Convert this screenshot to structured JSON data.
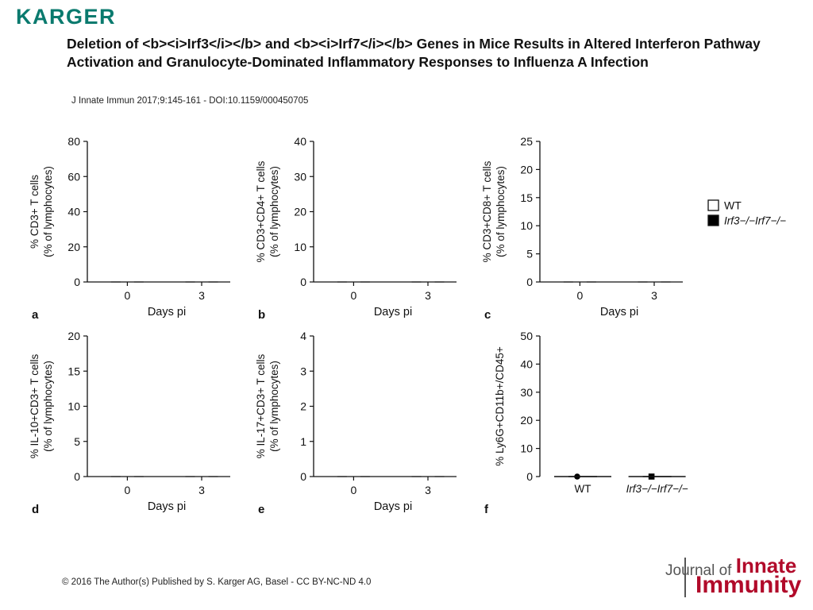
{
  "publisher": "KARGER",
  "title": "Deletion of <b><i>Irf3</i></b> and <b><i>Irf7</i></b> Genes in Mice Results in Altered Interferon Pathway Activation and Granulocyte-Dominated Inflammatory Responses to Influenza A Infection",
  "citation": "J Innate Immun 2017;9:145-161 -  DOI:10.1159/000450705",
  "footer": "© 2016 The Author(s) Published by S. Karger AG, Basel - CC BY-NC-ND 4.0",
  "journal": {
    "line1": "Journal of",
    "line1_big": "Innate",
    "line2": "Immunity"
  },
  "legend": {
    "wt": "WT",
    "ko": "Irf3−/−Irf7−/−"
  },
  "colors": {
    "wt": "#ffffff",
    "ko": "#000000",
    "stroke": "#111111",
    "brand": "#0a7a6e",
    "journal": "#b10a2a"
  },
  "chart_data": [
    {
      "panel": "a",
      "type": "bar",
      "ylabel": [
        "% CD3+ T cells",
        "(% of lymphocytes)"
      ],
      "xlabel": "Days pi",
      "categories": [
        "0",
        "3"
      ],
      "ylim": [
        0,
        80
      ],
      "yticks": [
        0,
        20,
        40,
        60,
        80
      ],
      "series": [
        {
          "name": "WT",
          "values": [
            0,
            0
          ],
          "errors": [
            0,
            0
          ]
        },
        {
          "name": "Irf3−/−Irf7−/−",
          "values": [
            0,
            0
          ],
          "errors": [
            0,
            0
          ]
        }
      ]
    },
    {
      "panel": "b",
      "type": "bar",
      "ylabel": [
        "% CD3+CD4+ T cells",
        "(% of lymphocytes)"
      ],
      "xlabel": "Days pi",
      "categories": [
        "0",
        "3"
      ],
      "ylim": [
        0,
        40
      ],
      "yticks": [
        0,
        10,
        20,
        30,
        40
      ],
      "series": [
        {
          "name": "WT",
          "values": [
            0,
            0
          ],
          "errors": [
            0,
            0
          ]
        },
        {
          "name": "Irf3−/−Irf7−/−",
          "values": [
            0,
            0
          ],
          "errors": [
            0,
            0
          ]
        }
      ]
    },
    {
      "panel": "c",
      "type": "bar",
      "ylabel": [
        "% CD3+CD8+ T cells",
        "(% of lymphocytes)"
      ],
      "xlabel": "Days pi",
      "categories": [
        "0",
        "3"
      ],
      "ylim": [
        0,
        25
      ],
      "yticks": [
        0,
        5,
        10,
        15,
        20,
        25
      ],
      "series": [
        {
          "name": "WT",
          "values": [
            0,
            0
          ],
          "errors": [
            0,
            0
          ]
        },
        {
          "name": "Irf3−/−Irf7−/−",
          "values": [
            0,
            0
          ],
          "errors": [
            0,
            0
          ]
        }
      ]
    },
    {
      "panel": "d",
      "type": "bar",
      "ylabel": [
        "% IL-10+CD3+ T cells",
        "(% of lymphocytes)"
      ],
      "xlabel": "Days pi",
      "categories": [
        "0",
        "3"
      ],
      "ylim": [
        0,
        20
      ],
      "yticks": [
        0,
        5,
        10,
        15,
        20
      ],
      "series": [
        {
          "name": "WT",
          "values": [
            0,
            0
          ],
          "errors": [
            0,
            0
          ]
        },
        {
          "name": "Irf3−/−Irf7−/−",
          "values": [
            0,
            0
          ],
          "errors": [
            0,
            0
          ]
        }
      ]
    },
    {
      "panel": "e",
      "type": "bar",
      "ylabel": [
        "% IL-17+CD3+ T cells",
        "(% of lymphocytes)"
      ],
      "xlabel": "Days pi",
      "categories": [
        "0",
        "3"
      ],
      "ylim": [
        0,
        4
      ],
      "yticks": [
        0,
        1,
        2,
        3,
        4
      ],
      "series": [
        {
          "name": "WT",
          "values": [
            0,
            0
          ],
          "errors": [
            0,
            0
          ]
        },
        {
          "name": "Irf3−/−Irf7−/−",
          "values": [
            0,
            0
          ],
          "errors": [
            0,
            0
          ]
        }
      ]
    },
    {
      "panel": "f",
      "type": "scatter",
      "ylabel": [
        "% Ly6G+CD11b+/CD45+"
      ],
      "xlabel": "",
      "categories": [
        "WT",
        "Irf3−/−Irf7−/−"
      ],
      "ylim": [
        0,
        50
      ],
      "yticks": [
        0,
        10,
        20,
        30,
        40,
        50
      ],
      "groups": [
        {
          "name": "WT",
          "marker": "circle",
          "points": [
            0
          ],
          "mean": 0,
          "sem": 0
        },
        {
          "name": "Irf3−/−Irf7−/−",
          "marker": "square",
          "points": [
            0
          ],
          "mean": 0,
          "sem": 0
        }
      ]
    }
  ]
}
